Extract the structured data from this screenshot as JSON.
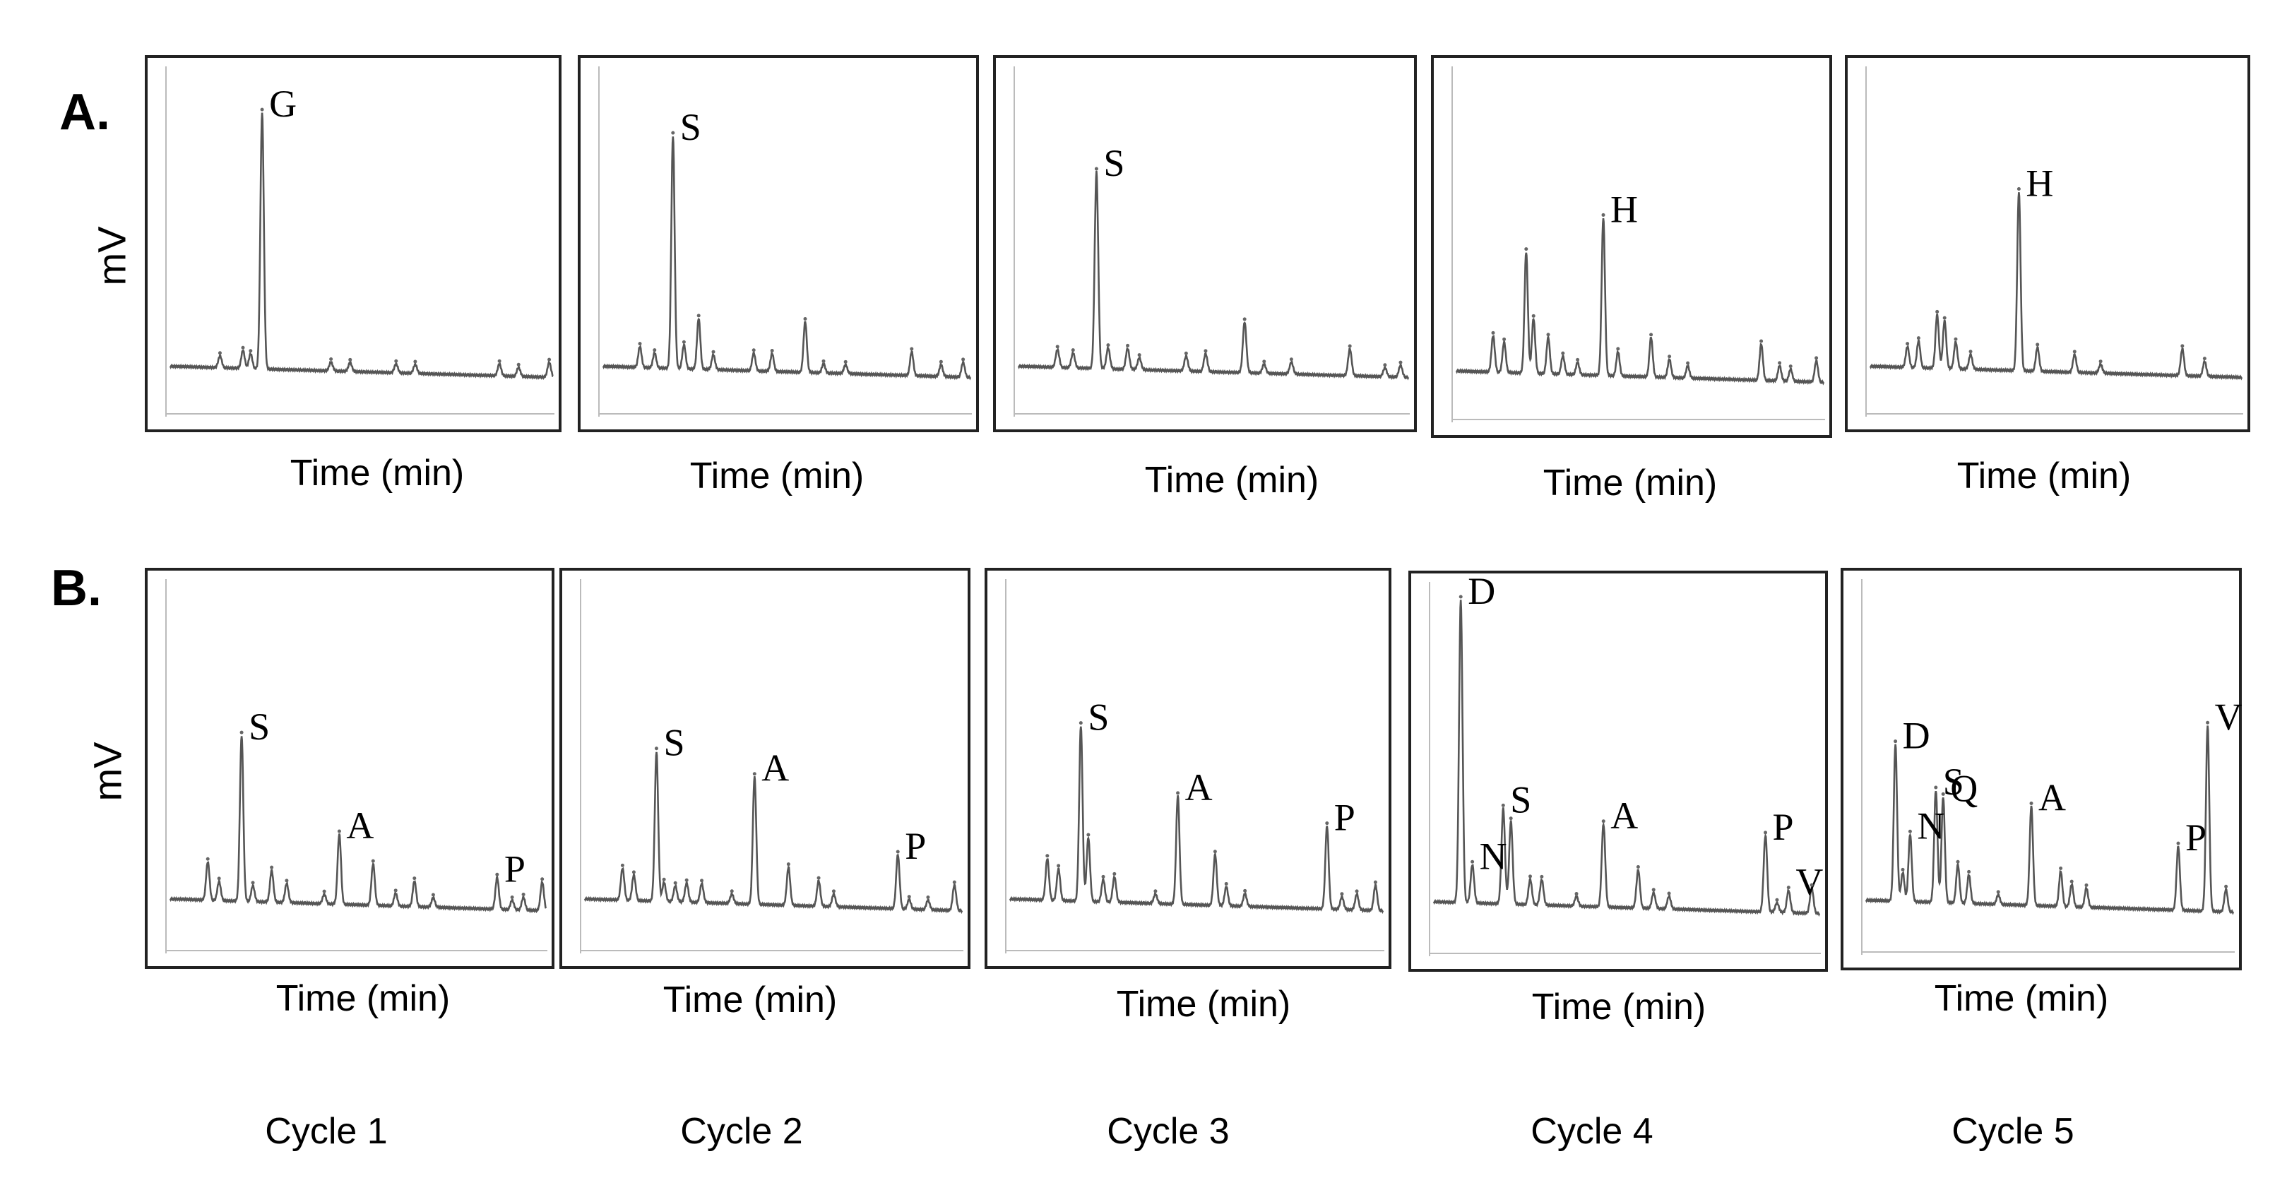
{
  "figure": {
    "row_a_label": "A.",
    "row_b_label": "B.",
    "y_axis_label": "mV",
    "x_axis_label": "Time (min)",
    "cycles": [
      "Cycle 1",
      "Cycle 2",
      "Cycle 3",
      "Cycle 4",
      "Cycle 5"
    ]
  },
  "chart_data": [
    {
      "type": "line",
      "row": "A",
      "cycle": "Cycle 1",
      "xlabel": "Time (min)",
      "ylabel": "mV",
      "trace_color": "#555555",
      "peaks": [
        {
          "label": "G",
          "time": 0.24,
          "height": 0.86,
          "labeled": true
        },
        {
          "time": 0.13,
          "height": 0.04
        },
        {
          "time": 0.19,
          "height": 0.06
        },
        {
          "time": 0.21,
          "height": 0.05
        },
        {
          "time": 0.42,
          "height": 0.03
        },
        {
          "time": 0.47,
          "height": 0.03
        },
        {
          "time": 0.59,
          "height": 0.03
        },
        {
          "time": 0.64,
          "height": 0.03
        },
        {
          "time": 0.86,
          "height": 0.04
        },
        {
          "time": 0.91,
          "height": 0.03
        },
        {
          "time": 0.99,
          "height": 0.05
        }
      ]
    },
    {
      "type": "line",
      "row": "A",
      "cycle": "Cycle 2",
      "xlabel": "Time (min)",
      "ylabel": "mV",
      "trace_color": "#555555",
      "peaks": [
        {
          "label": "S",
          "time": 0.19,
          "height": 0.78,
          "labeled": true
        },
        {
          "time": 0.1,
          "height": 0.07
        },
        {
          "time": 0.14,
          "height": 0.05
        },
        {
          "time": 0.22,
          "height": 0.08
        },
        {
          "time": 0.26,
          "height": 0.17
        },
        {
          "time": 0.3,
          "height": 0.05
        },
        {
          "time": 0.41,
          "height": 0.06
        },
        {
          "time": 0.46,
          "height": 0.06
        },
        {
          "time": 0.55,
          "height": 0.17
        },
        {
          "time": 0.6,
          "height": 0.03
        },
        {
          "time": 0.66,
          "height": 0.03
        },
        {
          "time": 0.84,
          "height": 0.08
        },
        {
          "time": 0.92,
          "height": 0.04
        },
        {
          "time": 0.98,
          "height": 0.05
        }
      ]
    },
    {
      "type": "line",
      "row": "A",
      "cycle": "Cycle 3",
      "xlabel": "Time (min)",
      "ylabel": "mV",
      "trace_color": "#555555",
      "peaks": [
        {
          "label": "S",
          "time": 0.2,
          "height": 0.66,
          "labeled": true
        },
        {
          "time": 0.1,
          "height": 0.06
        },
        {
          "time": 0.14,
          "height": 0.05
        },
        {
          "time": 0.23,
          "height": 0.07
        },
        {
          "time": 0.28,
          "height": 0.07
        },
        {
          "time": 0.31,
          "height": 0.04
        },
        {
          "time": 0.43,
          "height": 0.05
        },
        {
          "time": 0.48,
          "height": 0.06
        },
        {
          "time": 0.58,
          "height": 0.17
        },
        {
          "time": 0.63,
          "height": 0.03
        },
        {
          "time": 0.7,
          "height": 0.04
        },
        {
          "time": 0.85,
          "height": 0.09
        },
        {
          "time": 0.94,
          "height": 0.03
        },
        {
          "time": 0.98,
          "height": 0.04
        }
      ]
    },
    {
      "type": "line",
      "row": "A",
      "cycle": "Cycle 4",
      "xlabel": "Time (min)",
      "ylabel": "mV",
      "trace_color": "#555555",
      "peaks": [
        {
          "label": "H",
          "time": 0.4,
          "height": 0.52,
          "labeled": true
        },
        {
          "time": 0.1,
          "height": 0.12
        },
        {
          "time": 0.13,
          "height": 0.1
        },
        {
          "time": 0.19,
          "height": 0.4
        },
        {
          "time": 0.21,
          "height": 0.18
        },
        {
          "time": 0.25,
          "height": 0.12
        },
        {
          "time": 0.29,
          "height": 0.06
        },
        {
          "time": 0.33,
          "height": 0.04
        },
        {
          "time": 0.44,
          "height": 0.08
        },
        {
          "time": 0.53,
          "height": 0.13
        },
        {
          "time": 0.58,
          "height": 0.06
        },
        {
          "time": 0.63,
          "height": 0.04
        },
        {
          "time": 0.83,
          "height": 0.12
        },
        {
          "time": 0.88,
          "height": 0.05
        },
        {
          "time": 0.91,
          "height": 0.04
        },
        {
          "time": 0.98,
          "height": 0.07
        }
      ]
    },
    {
      "type": "line",
      "row": "A",
      "cycle": "Cycle 5",
      "xlabel": "Time (min)",
      "ylabel": "mV",
      "trace_color": "#555555",
      "peaks": [
        {
          "label": "H",
          "time": 0.4,
          "height": 0.6,
          "labeled": true
        },
        {
          "time": 0.1,
          "height": 0.07
        },
        {
          "time": 0.13,
          "height": 0.09
        },
        {
          "time": 0.18,
          "height": 0.18
        },
        {
          "time": 0.2,
          "height": 0.16
        },
        {
          "time": 0.23,
          "height": 0.09
        },
        {
          "time": 0.27,
          "height": 0.05
        },
        {
          "time": 0.45,
          "height": 0.08
        },
        {
          "time": 0.55,
          "height": 0.06
        },
        {
          "time": 0.62,
          "height": 0.03
        },
        {
          "time": 0.84,
          "height": 0.09
        },
        {
          "time": 0.9,
          "height": 0.05
        }
      ]
    },
    {
      "type": "line",
      "row": "B",
      "cycle": "Cycle 1",
      "xlabel": "Time (min)",
      "ylabel": "mV",
      "trace_color": "#555555",
      "peaks": [
        {
          "label": "S",
          "time": 0.19,
          "height": 0.52,
          "labeled": true
        },
        {
          "label": "A",
          "time": 0.45,
          "height": 0.22,
          "labeled": true
        },
        {
          "label": "P",
          "time": 0.87,
          "height": 0.1,
          "labeled": true
        },
        {
          "time": 0.1,
          "height": 0.12
        },
        {
          "time": 0.13,
          "height": 0.06
        },
        {
          "time": 0.22,
          "height": 0.05
        },
        {
          "time": 0.27,
          "height": 0.1
        },
        {
          "time": 0.31,
          "height": 0.06
        },
        {
          "time": 0.41,
          "height": 0.03
        },
        {
          "time": 0.54,
          "height": 0.13
        },
        {
          "time": 0.6,
          "height": 0.04
        },
        {
          "time": 0.65,
          "height": 0.08
        },
        {
          "time": 0.7,
          "height": 0.03
        },
        {
          "time": 0.91,
          "height": 0.03
        },
        {
          "time": 0.94,
          "height": 0.04
        },
        {
          "time": 0.99,
          "height": 0.09
        }
      ]
    },
    {
      "type": "line",
      "row": "B",
      "cycle": "Cycle 2",
      "xlabel": "Time (min)",
      "ylabel": "mV",
      "trace_color": "#555555",
      "peaks": [
        {
          "label": "S",
          "time": 0.19,
          "height": 0.47,
          "labeled": true
        },
        {
          "label": "A",
          "time": 0.45,
          "height": 0.4,
          "labeled": true
        },
        {
          "label": "P",
          "time": 0.83,
          "height": 0.17,
          "labeled": true
        },
        {
          "time": 0.1,
          "height": 0.1
        },
        {
          "time": 0.13,
          "height": 0.08
        },
        {
          "time": 0.21,
          "height": 0.06
        },
        {
          "time": 0.24,
          "height": 0.05
        },
        {
          "time": 0.27,
          "height": 0.06
        },
        {
          "time": 0.31,
          "height": 0.06
        },
        {
          "time": 0.39,
          "height": 0.03
        },
        {
          "time": 0.54,
          "height": 0.12
        },
        {
          "time": 0.62,
          "height": 0.08
        },
        {
          "time": 0.66,
          "height": 0.04
        },
        {
          "time": 0.86,
          "height": 0.03
        },
        {
          "time": 0.91,
          "height": 0.03
        },
        {
          "time": 0.98,
          "height": 0.08
        }
      ]
    },
    {
      "type": "line",
      "row": "B",
      "cycle": "Cycle 3",
      "xlabel": "Time (min)",
      "ylabel": "mV",
      "trace_color": "#555555",
      "peaks": [
        {
          "label": "S",
          "time": 0.19,
          "height": 0.55,
          "labeled": true
        },
        {
          "label": "A",
          "time": 0.45,
          "height": 0.34,
          "labeled": true
        },
        {
          "label": "P",
          "time": 0.85,
          "height": 0.26,
          "labeled": true
        },
        {
          "time": 0.1,
          "height": 0.13
        },
        {
          "time": 0.13,
          "height": 0.1
        },
        {
          "time": 0.21,
          "height": 0.2
        },
        {
          "time": 0.25,
          "height": 0.07
        },
        {
          "time": 0.28,
          "height": 0.08
        },
        {
          "time": 0.39,
          "height": 0.03
        },
        {
          "time": 0.55,
          "height": 0.16
        },
        {
          "time": 0.58,
          "height": 0.06
        },
        {
          "time": 0.63,
          "height": 0.04
        },
        {
          "time": 0.89,
          "height": 0.04
        },
        {
          "time": 0.93,
          "height": 0.05
        },
        {
          "time": 0.98,
          "height": 0.08
        }
      ]
    },
    {
      "type": "line",
      "row": "B",
      "cycle": "Cycle 4",
      "xlabel": "Time (min)",
      "ylabel": "mV",
      "trace_color": "#555555",
      "peaks": [
        {
          "label": "D",
          "time": 0.07,
          "height": 0.95,
          "labeled": true
        },
        {
          "label": "N",
          "time": 0.1,
          "height": 0.12,
          "labeled": true
        },
        {
          "label": "S",
          "time": 0.18,
          "height": 0.3,
          "labeled": true
        },
        {
          "label": "A",
          "time": 0.44,
          "height": 0.26,
          "labeled": true
        },
        {
          "label": "P",
          "time": 0.86,
          "height": 0.24,
          "labeled": true
        },
        {
          "label": "V",
          "time": 0.92,
          "height": 0.07,
          "labeled": true
        },
        {
          "time": 0.2,
          "height": 0.26
        },
        {
          "time": 0.25,
          "height": 0.08
        },
        {
          "time": 0.28,
          "height": 0.08
        },
        {
          "time": 0.37,
          "height": 0.03
        },
        {
          "time": 0.53,
          "height": 0.12
        },
        {
          "time": 0.57,
          "height": 0.05
        },
        {
          "time": 0.61,
          "height": 0.04
        },
        {
          "time": 0.89,
          "height": 0.03
        },
        {
          "time": 0.98,
          "height": 0.08
        }
      ]
    },
    {
      "type": "line",
      "row": "B",
      "cycle": "Cycle 5",
      "xlabel": "Time (min)",
      "ylabel": "mV",
      "trace_color": "#555555",
      "peaks": [
        {
          "label": "D",
          "time": 0.08,
          "height": 0.49,
          "labeled": true
        },
        {
          "label": "N",
          "time": 0.12,
          "height": 0.21,
          "labeled": true
        },
        {
          "label": "S",
          "time": 0.19,
          "height": 0.35,
          "labeled": true
        },
        {
          "label": "Q",
          "time": 0.21,
          "height": 0.33,
          "labeled": true
        },
        {
          "label": "A",
          "time": 0.45,
          "height": 0.31,
          "labeled": true
        },
        {
          "label": "P",
          "time": 0.85,
          "height": 0.2,
          "labeled": true
        },
        {
          "label": "V",
          "time": 0.93,
          "height": 0.58,
          "labeled": true
        },
        {
          "time": 0.1,
          "height": 0.09
        },
        {
          "time": 0.25,
          "height": 0.12
        },
        {
          "time": 0.28,
          "height": 0.09
        },
        {
          "time": 0.36,
          "height": 0.03
        },
        {
          "time": 0.53,
          "height": 0.11
        },
        {
          "time": 0.56,
          "height": 0.07
        },
        {
          "time": 0.6,
          "height": 0.06
        },
        {
          "time": 0.98,
          "height": 0.07
        }
      ]
    }
  ]
}
